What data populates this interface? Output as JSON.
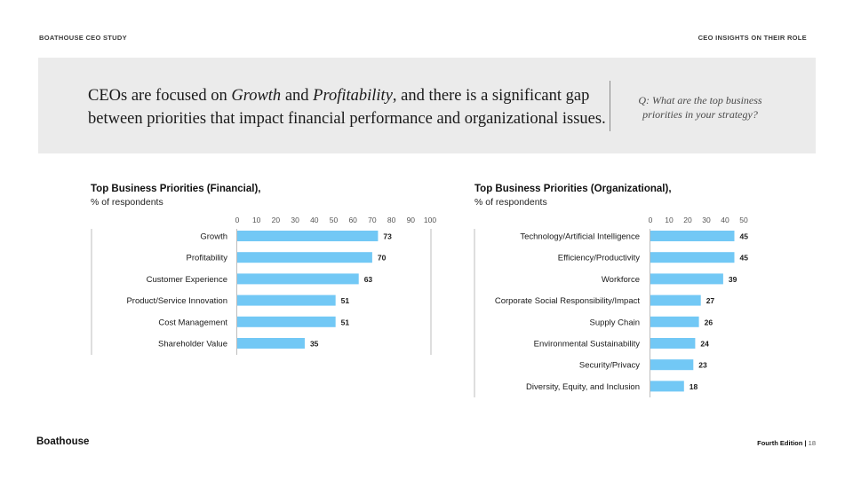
{
  "header": {
    "left_label": "BOATHOUSE CEO STUDY",
    "right_label": "CEO INSIGHTS ON THEIR ROLE"
  },
  "banner": {
    "headline_part1": "CEOs are focused on ",
    "headline_em1": "Growth",
    "headline_part2": " and ",
    "headline_em2": "Profitability",
    "headline_part3": ", and there is a significant gap between priorities that impact financial performance and organizational issues.",
    "question": "Q: What are the top business priorities in your strategy?"
  },
  "footer": {
    "brand": "Boathouse",
    "edition": "Fourth Edition",
    "separator": "|",
    "page": "18"
  },
  "colors": {
    "bar": "#72c8f5",
    "axis": "#bdbdbd",
    "banner_bg": "#ebebeb"
  },
  "chart_data": [
    {
      "type": "bar",
      "orientation": "horizontal",
      "title": "Top Business Priorities (Financial),",
      "subtitle": "% of respondents",
      "categories": [
        "Growth",
        "Profitability",
        "Customer Experience",
        "Product/Service Innovation",
        "Cost Management",
        "Shareholder Value"
      ],
      "values": [
        73,
        70,
        63,
        51,
        51,
        35
      ],
      "xlim": [
        0,
        100
      ],
      "ticks": [
        "0",
        "10",
        "20",
        "30",
        "40",
        "50",
        "60",
        "70",
        "80",
        "90",
        "100"
      ],
      "grid": false
    },
    {
      "type": "bar",
      "orientation": "horizontal",
      "title": "Top Business Priorities (Organizational),",
      "subtitle": "% of respondents",
      "categories": [
        "Technology/Artificial Intelligence",
        "Efficiency/Productivity",
        "Workforce",
        "Corporate Social Responsibility/Impact",
        "Supply Chain",
        "Environmental Sustainability",
        "Security/Privacy",
        "Diversity, Equity, and Inclusion"
      ],
      "values": [
        45,
        45,
        39,
        27,
        26,
        24,
        23,
        18
      ],
      "xlim": [
        0,
        50
      ],
      "ticks": [
        "0",
        "10",
        "20",
        "30",
        "40",
        "50"
      ],
      "grid": false
    }
  ]
}
